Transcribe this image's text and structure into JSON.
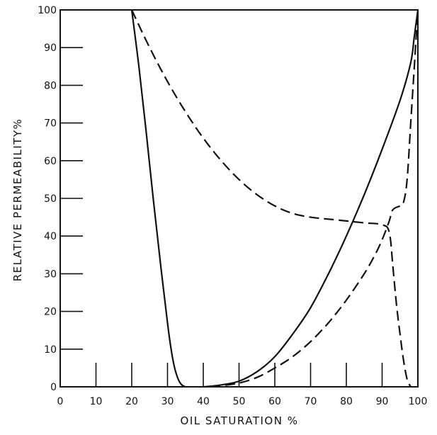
{
  "chart_data": {
    "type": "line",
    "title": "",
    "xlabel": "OIL SATURATION %",
    "ylabel": "RELATIVE PERMEABILITY%",
    "xlim": [
      0,
      100
    ],
    "ylim": [
      0,
      100
    ],
    "xticks": [
      "0",
      "10",
      "20",
      "30",
      "40",
      "50",
      "60",
      "70",
      "80",
      "90",
      "100"
    ],
    "yticks": [
      "0",
      "10",
      "20",
      "30",
      "40",
      "50",
      "60",
      "70",
      "80",
      "90",
      "100"
    ],
    "grid": false,
    "legend": "none",
    "series": [
      {
        "style": "solid",
        "color": "#111111",
        "points": [
          [
            20,
            100
          ],
          [
            22,
            85
          ],
          [
            24,
            68
          ],
          [
            26,
            50
          ],
          [
            28,
            33
          ],
          [
            30,
            17
          ],
          [
            31,
            10
          ],
          [
            32,
            5
          ],
          [
            33,
            2
          ],
          [
            34,
            0.5
          ],
          [
            35,
            0
          ]
        ]
      },
      {
        "style": "dashed",
        "color": "#111111",
        "points": [
          [
            20,
            100
          ],
          [
            25,
            90
          ],
          [
            30,
            81
          ],
          [
            35,
            73
          ],
          [
            40,
            66
          ],
          [
            45,
            60
          ],
          [
            50,
            55
          ],
          [
            55,
            51
          ],
          [
            60,
            48
          ],
          [
            65,
            46
          ],
          [
            70,
            45
          ],
          [
            75,
            44.5
          ],
          [
            80,
            44
          ],
          [
            85,
            43.5
          ],
          [
            90,
            43
          ],
          [
            92,
            41
          ],
          [
            93,
            32
          ],
          [
            94,
            22
          ],
          [
            95,
            14
          ],
          [
            96,
            7
          ],
          [
            97,
            2
          ],
          [
            98,
            0
          ]
        ]
      },
      {
        "style": "solid",
        "color": "#111111",
        "points": [
          [
            40,
            0
          ],
          [
            45,
            0.5
          ],
          [
            50,
            1.5
          ],
          [
            55,
            4
          ],
          [
            60,
            8
          ],
          [
            65,
            14
          ],
          [
            70,
            21
          ],
          [
            75,
            30
          ],
          [
            80,
            40
          ],
          [
            85,
            51
          ],
          [
            90,
            63
          ],
          [
            95,
            76
          ],
          [
            98,
            86
          ],
          [
            99,
            93
          ],
          [
            100,
            100
          ]
        ]
      },
      {
        "style": "dashed",
        "color": "#111111",
        "points": [
          [
            42,
            0
          ],
          [
            45,
            0.3
          ],
          [
            50,
            1
          ],
          [
            55,
            2.5
          ],
          [
            60,
            5
          ],
          [
            65,
            8
          ],
          [
            70,
            12
          ],
          [
            75,
            17
          ],
          [
            80,
            23
          ],
          [
            85,
            30
          ],
          [
            88,
            35
          ],
          [
            90,
            39
          ],
          [
            92,
            44
          ],
          [
            93,
            47
          ],
          [
            95,
            48
          ],
          [
            96,
            49
          ],
          [
            97,
            55
          ],
          [
            98,
            70
          ],
          [
            99,
            85
          ],
          [
            100,
            100
          ]
        ]
      }
    ]
  }
}
